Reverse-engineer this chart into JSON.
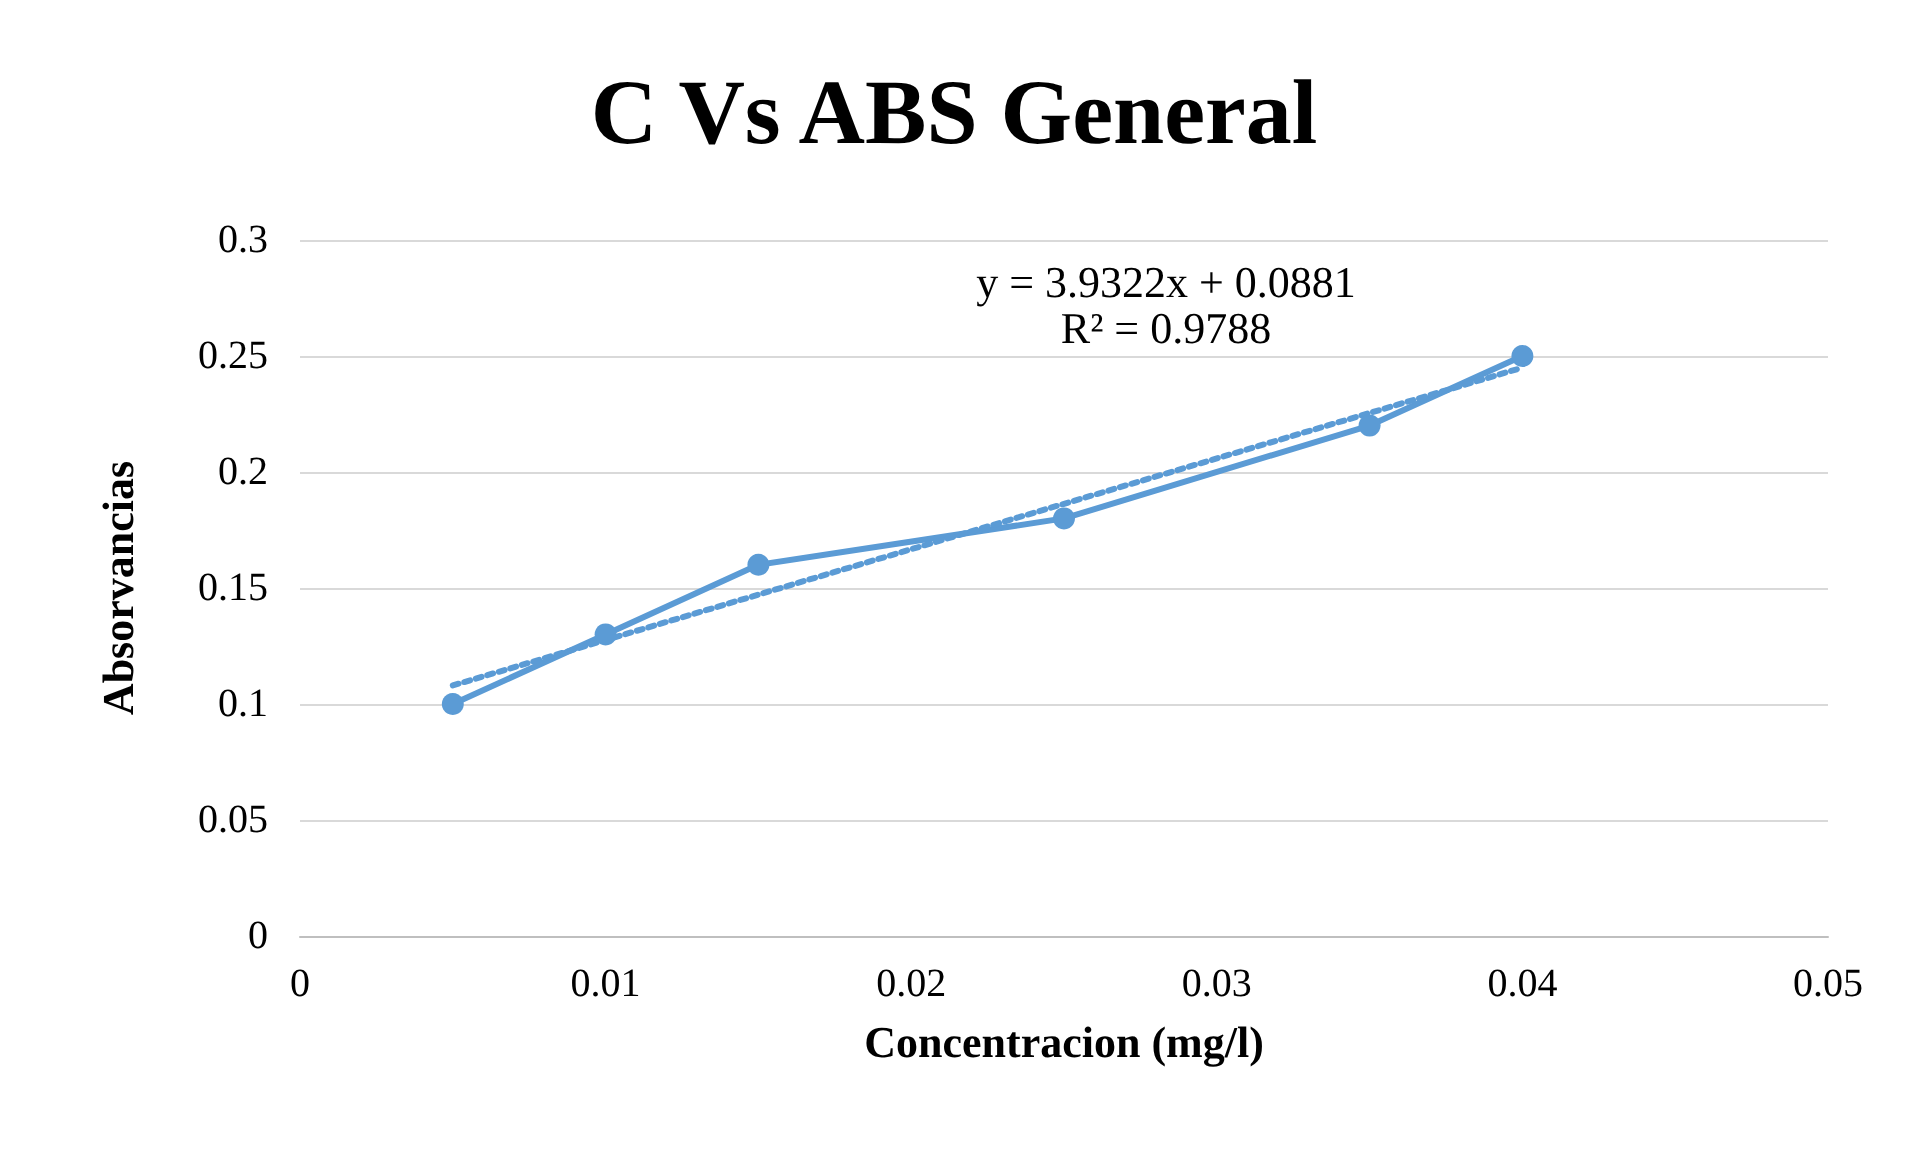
{
  "chart_data": {
    "type": "line",
    "title": "C Vs ABS General",
    "xlabel": "Concentracion (mg/l)",
    "ylabel": "Absorvancias",
    "x": [
      0.005,
      0.01,
      0.015,
      0.025,
      0.035,
      0.04
    ],
    "series": [
      {
        "color": "#5b9bd5",
        "values": [
          0.1,
          0.13,
          0.16,
          0.18,
          0.22,
          0.25
        ],
        "marker": "circle",
        "line_style": "solid"
      },
      {
        "type": "line",
        "color": "#5b9bd5",
        "x": [
          0.005,
          0.04
        ],
        "values": [
          0.108,
          0.245
        ],
        "marker": "none",
        "line_style": "dotted"
      }
    ],
    "xlim": [
      0,
      0.05
    ],
    "xticks": [
      0,
      0.01,
      0.02,
      0.03,
      0.04,
      0.05
    ],
    "ylim": [
      0,
      0.3
    ],
    "yticks": [
      0,
      0.05,
      0.1,
      0.15,
      0.2,
      0.25,
      0.3
    ],
    "grid": "y",
    "annotations": [
      "y = 3.9322x + 0.0881",
      "R² = 0.9788"
    ]
  }
}
